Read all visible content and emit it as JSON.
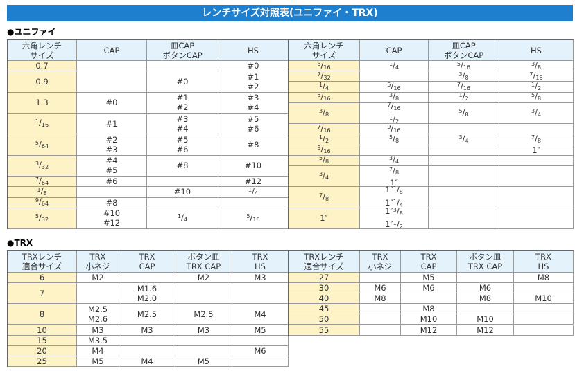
{
  "title": "レンチサイズ対照表(ユニファイ・TRX)",
  "sections": [
    {
      "heading": "●ユニファイ",
      "tables": [
        {
          "columns": [
            [
              "六角レンチ",
              "サイズ"
            ],
            [
              "CAP"
            ],
            [
              "皿CAP",
              "ボタンCAP"
            ],
            [
              "HS"
            ]
          ],
          "rows": [
            {
              "cells": [
                [
                  "0.7"
                ],
                [],
                [],
                [
                  "#0"
                ]
              ]
            },
            {
              "cells": [
                [
                  "0.9"
                ],
                [],
                [
                  "#0"
                ],
                [
                  "#1",
                  "#2"
                ]
              ]
            },
            {
              "cells": [
                [
                  "1.3"
                ],
                [
                  "#0"
                ],
                [
                  "#1",
                  "#2"
                ],
                [
                  "#3",
                  "#4"
                ]
              ]
            },
            {
              "cells": [
                [
                  "1/16"
                ],
                [
                  "#1"
                ],
                [
                  "#3",
                  "#4"
                ],
                [
                  "#5",
                  "#6"
                ]
              ]
            },
            {
              "cells": [
                [
                  "5/64"
                ],
                [
                  "#2",
                  "#3"
                ],
                [
                  "#5",
                  "#6"
                ],
                [
                  "#8"
                ]
              ]
            },
            {
              "cells": [
                [
                  "3/32"
                ],
                [
                  "#4",
                  "#5"
                ],
                [
                  "#8"
                ],
                [
                  "#10"
                ]
              ]
            },
            {
              "cells": [
                [
                  "7/64"
                ],
                [
                  "#6"
                ],
                [],
                [
                  "#12"
                ]
              ]
            },
            {
              "cells": [
                [
                  "1/8"
                ],
                [],
                [
                  "#10"
                ],
                [
                  "1/4"
                ]
              ]
            },
            {
              "cells": [
                [
                  "9/64"
                ],
                [
                  "#8"
                ],
                [],
                []
              ]
            },
            {
              "cells": [
                [
                  "5/32"
                ],
                [
                  "#10",
                  "#12"
                ],
                [
                  "1/4"
                ],
                [
                  "5/16"
                ]
              ]
            }
          ]
        },
        {
          "columns": [
            [
              "六角レンチ",
              "サイズ"
            ],
            [
              "CAP"
            ],
            [
              "皿CAP",
              "ボタンCAP"
            ],
            [
              "HS"
            ]
          ],
          "rows": [
            {
              "cells": [
                [
                  "3/16"
                ],
                [
                  "1/4"
                ],
                [
                  "5/16"
                ],
                [
                  "3/8"
                ]
              ]
            },
            {
              "cells": [
                [
                  "7/32"
                ],
                [],
                [
                  "3/8"
                ],
                [
                  "7/16"
                ]
              ]
            },
            {
              "cells": [
                [
                  "1/4"
                ],
                [
                  "5/16"
                ],
                [
                  "7/16"
                ],
                [
                  "1/2"
                ]
              ]
            },
            {
              "cells": [
                [
                  "5/16"
                ],
                [
                  "3/8"
                ],
                [
                  "1/2"
                ],
                [
                  "5/8"
                ]
              ]
            },
            {
              "cells": [
                [
                  "3/8"
                ],
                [
                  "7/16",
                  "1/2"
                ],
                [
                  "5/8"
                ],
                [
                  "3/4"
                ]
              ]
            },
            {
              "cells": [
                [
                  "7/16"
                ],
                [
                  "9/16"
                ],
                [],
                []
              ]
            },
            {
              "cells": [
                [
                  "1/2"
                ],
                [
                  "5/8"
                ],
                [
                  "3/4"
                ],
                [
                  "7/8"
                ]
              ]
            },
            {
              "cells": [
                [
                  "9/16"
                ],
                [],
                [],
                [
                  "1″"
                ]
              ]
            },
            {
              "cells": [
                [
                  "5/8"
                ],
                [
                  "3/4"
                ],
                [],
                []
              ]
            },
            {
              "cells": [
                [
                  "3/4"
                ],
                [
                  "7/8",
                  "1″"
                ],
                [],
                []
              ]
            },
            {
              "cells": [
                [
                  "7/8"
                ],
                [
                  "1″1/8",
                  "1″1/4"
                ],
                [],
                []
              ]
            },
            {
              "cells": [
                [
                  "1″"
                ],
                [
                  "1″3/8",
                  "1″1/2"
                ],
                [],
                []
              ]
            }
          ]
        }
      ]
    },
    {
      "heading": "●TRX",
      "tables": [
        {
          "columns": [
            [
              "TRXレンチ",
              "適合サイズ"
            ],
            [
              "TRX",
              "小ネジ"
            ],
            [
              "TRX",
              "CAP"
            ],
            [
              "ボタン皿",
              "TRX CAP"
            ],
            [
              "TRX",
              "HS"
            ]
          ],
          "rows": [
            {
              "cells": [
                [
                  "6"
                ],
                [
                  "M2"
                ],
                [],
                [
                  "M2"
                ],
                [
                  "M3"
                ]
              ]
            },
            {
              "cells": [
                [
                  "7"
                ],
                [],
                [
                  "M1.6",
                  "M2.0"
                ],
                [],
                []
              ]
            },
            {
              "cells": [
                [
                  "8"
                ],
                [
                  "M2.5",
                  "M2.6"
                ],
                [
                  "M2.5"
                ],
                [
                  "M2.5"
                ],
                [
                  "M4"
                ]
              ]
            },
            {
              "cells": [
                [
                  "10"
                ],
                [
                  "M3"
                ],
                [
                  "M3"
                ],
                [
                  "M3"
                ],
                [
                  "M5"
                ]
              ]
            },
            {
              "cells": [
                [
                  "15"
                ],
                [
                  "M3.5"
                ],
                [],
                [],
                []
              ]
            },
            {
              "cells": [
                [
                  "20"
                ],
                [
                  "M4"
                ],
                [],
                [],
                [
                  "M6"
                ]
              ]
            },
            {
              "cells": [
                [
                  "25"
                ],
                [
                  "M5"
                ],
                [
                  "M4"
                ],
                [
                  "M5"
                ],
                []
              ]
            }
          ]
        },
        {
          "columns": [
            [
              "TRXレンチ",
              "適合サイズ"
            ],
            [
              "TRX",
              "小ネジ"
            ],
            [
              "TRX",
              "CAP"
            ],
            [
              "ボタン皿",
              "TRX CAP"
            ],
            [
              "TRX",
              "HS"
            ]
          ],
          "rows": [
            {
              "cells": [
                [
                  "27"
                ],
                [],
                [
                  "M5"
                ],
                [],
                [
                  "M8"
                ]
              ]
            },
            {
              "cells": [
                [
                  "30"
                ],
                [
                  "M6"
                ],
                [
                  "M6"
                ],
                [
                  "M6"
                ],
                []
              ]
            },
            {
              "cells": [
                [
                  "40"
                ],
                [
                  "M8"
                ],
                [],
                [
                  "M8"
                ],
                [
                  "M10"
                ]
              ]
            },
            {
              "cells": [
                [
                  "45"
                ],
                [],
                [
                  "M8"
                ],
                [],
                []
              ]
            },
            {
              "cells": [
                [
                  "50"
                ],
                [],
                [
                  "M10"
                ],
                [
                  "M10"
                ],
                []
              ]
            },
            {
              "cells": [
                [
                  "55"
                ],
                [],
                [
                  "M12"
                ],
                [
                  "M12"
                ],
                []
              ]
            }
          ]
        }
      ]
    }
  ]
}
